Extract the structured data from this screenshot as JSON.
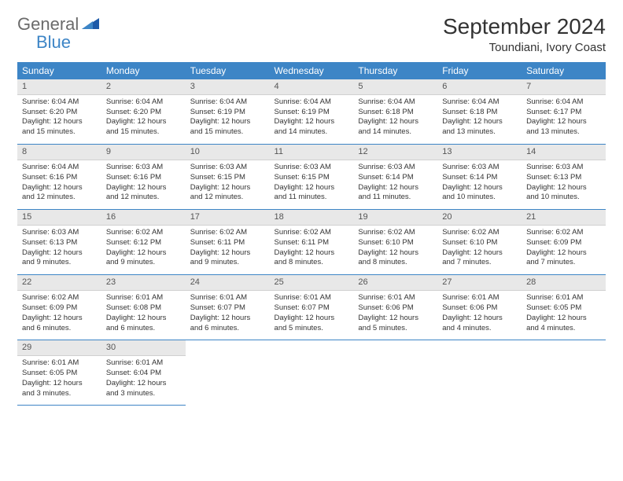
{
  "logo": {
    "text_general": "General",
    "text_blue": "Blue"
  },
  "title": "September 2024",
  "location": "Toundiani, Ivory Coast",
  "colors": {
    "header_bg": "#3d85c6",
    "header_text": "#ffffff",
    "daynum_bg": "#e8e8e8",
    "border": "#3d85c6",
    "body_text": "#333333",
    "logo_gray": "#6b6b6b",
    "logo_blue": "#3d85c6"
  },
  "weekdays": [
    "Sunday",
    "Monday",
    "Tuesday",
    "Wednesday",
    "Thursday",
    "Friday",
    "Saturday"
  ],
  "days": [
    {
      "n": "1",
      "sunrise": "Sunrise: 6:04 AM",
      "sunset": "Sunset: 6:20 PM",
      "daylight": "Daylight: 12 hours and 15 minutes."
    },
    {
      "n": "2",
      "sunrise": "Sunrise: 6:04 AM",
      "sunset": "Sunset: 6:20 PM",
      "daylight": "Daylight: 12 hours and 15 minutes."
    },
    {
      "n": "3",
      "sunrise": "Sunrise: 6:04 AM",
      "sunset": "Sunset: 6:19 PM",
      "daylight": "Daylight: 12 hours and 15 minutes."
    },
    {
      "n": "4",
      "sunrise": "Sunrise: 6:04 AM",
      "sunset": "Sunset: 6:19 PM",
      "daylight": "Daylight: 12 hours and 14 minutes."
    },
    {
      "n": "5",
      "sunrise": "Sunrise: 6:04 AM",
      "sunset": "Sunset: 6:18 PM",
      "daylight": "Daylight: 12 hours and 14 minutes."
    },
    {
      "n": "6",
      "sunrise": "Sunrise: 6:04 AM",
      "sunset": "Sunset: 6:18 PM",
      "daylight": "Daylight: 12 hours and 13 minutes."
    },
    {
      "n": "7",
      "sunrise": "Sunrise: 6:04 AM",
      "sunset": "Sunset: 6:17 PM",
      "daylight": "Daylight: 12 hours and 13 minutes."
    },
    {
      "n": "8",
      "sunrise": "Sunrise: 6:04 AM",
      "sunset": "Sunset: 6:16 PM",
      "daylight": "Daylight: 12 hours and 12 minutes."
    },
    {
      "n": "9",
      "sunrise": "Sunrise: 6:03 AM",
      "sunset": "Sunset: 6:16 PM",
      "daylight": "Daylight: 12 hours and 12 minutes."
    },
    {
      "n": "10",
      "sunrise": "Sunrise: 6:03 AM",
      "sunset": "Sunset: 6:15 PM",
      "daylight": "Daylight: 12 hours and 12 minutes."
    },
    {
      "n": "11",
      "sunrise": "Sunrise: 6:03 AM",
      "sunset": "Sunset: 6:15 PM",
      "daylight": "Daylight: 12 hours and 11 minutes."
    },
    {
      "n": "12",
      "sunrise": "Sunrise: 6:03 AM",
      "sunset": "Sunset: 6:14 PM",
      "daylight": "Daylight: 12 hours and 11 minutes."
    },
    {
      "n": "13",
      "sunrise": "Sunrise: 6:03 AM",
      "sunset": "Sunset: 6:14 PM",
      "daylight": "Daylight: 12 hours and 10 minutes."
    },
    {
      "n": "14",
      "sunrise": "Sunrise: 6:03 AM",
      "sunset": "Sunset: 6:13 PM",
      "daylight": "Daylight: 12 hours and 10 minutes."
    },
    {
      "n": "15",
      "sunrise": "Sunrise: 6:03 AM",
      "sunset": "Sunset: 6:13 PM",
      "daylight": "Daylight: 12 hours and 9 minutes."
    },
    {
      "n": "16",
      "sunrise": "Sunrise: 6:02 AM",
      "sunset": "Sunset: 6:12 PM",
      "daylight": "Daylight: 12 hours and 9 minutes."
    },
    {
      "n": "17",
      "sunrise": "Sunrise: 6:02 AM",
      "sunset": "Sunset: 6:11 PM",
      "daylight": "Daylight: 12 hours and 9 minutes."
    },
    {
      "n": "18",
      "sunrise": "Sunrise: 6:02 AM",
      "sunset": "Sunset: 6:11 PM",
      "daylight": "Daylight: 12 hours and 8 minutes."
    },
    {
      "n": "19",
      "sunrise": "Sunrise: 6:02 AM",
      "sunset": "Sunset: 6:10 PM",
      "daylight": "Daylight: 12 hours and 8 minutes."
    },
    {
      "n": "20",
      "sunrise": "Sunrise: 6:02 AM",
      "sunset": "Sunset: 6:10 PM",
      "daylight": "Daylight: 12 hours and 7 minutes."
    },
    {
      "n": "21",
      "sunrise": "Sunrise: 6:02 AM",
      "sunset": "Sunset: 6:09 PM",
      "daylight": "Daylight: 12 hours and 7 minutes."
    },
    {
      "n": "22",
      "sunrise": "Sunrise: 6:02 AM",
      "sunset": "Sunset: 6:09 PM",
      "daylight": "Daylight: 12 hours and 6 minutes."
    },
    {
      "n": "23",
      "sunrise": "Sunrise: 6:01 AM",
      "sunset": "Sunset: 6:08 PM",
      "daylight": "Daylight: 12 hours and 6 minutes."
    },
    {
      "n": "24",
      "sunrise": "Sunrise: 6:01 AM",
      "sunset": "Sunset: 6:07 PM",
      "daylight": "Daylight: 12 hours and 6 minutes."
    },
    {
      "n": "25",
      "sunrise": "Sunrise: 6:01 AM",
      "sunset": "Sunset: 6:07 PM",
      "daylight": "Daylight: 12 hours and 5 minutes."
    },
    {
      "n": "26",
      "sunrise": "Sunrise: 6:01 AM",
      "sunset": "Sunset: 6:06 PM",
      "daylight": "Daylight: 12 hours and 5 minutes."
    },
    {
      "n": "27",
      "sunrise": "Sunrise: 6:01 AM",
      "sunset": "Sunset: 6:06 PM",
      "daylight": "Daylight: 12 hours and 4 minutes."
    },
    {
      "n": "28",
      "sunrise": "Sunrise: 6:01 AM",
      "sunset": "Sunset: 6:05 PM",
      "daylight": "Daylight: 12 hours and 4 minutes."
    },
    {
      "n": "29",
      "sunrise": "Sunrise: 6:01 AM",
      "sunset": "Sunset: 6:05 PM",
      "daylight": "Daylight: 12 hours and 3 minutes."
    },
    {
      "n": "30",
      "sunrise": "Sunrise: 6:01 AM",
      "sunset": "Sunset: 6:04 PM",
      "daylight": "Daylight: 12 hours and 3 minutes."
    }
  ]
}
